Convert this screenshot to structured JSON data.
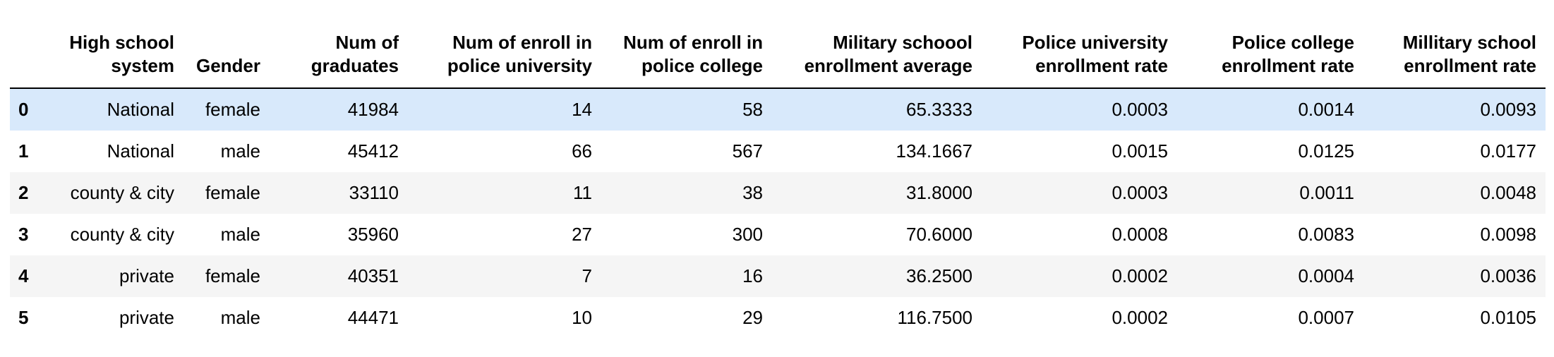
{
  "table": {
    "columns": [
      "",
      "High school system",
      "Gender",
      "Num of graduates",
      "Num of enroll in police university",
      "Num of enroll in police college",
      "Military schoool enrollment average",
      "Police university enrollment rate",
      "Police college enrollment rate",
      "Millitary school enrollment rate"
    ],
    "rows": [
      {
        "index": "0",
        "system": "National",
        "gender": "female",
        "graduates": "41984",
        "police_univ": "14",
        "police_college": "58",
        "military_avg": "65.3333",
        "police_univ_rate": "0.0003",
        "police_college_rate": "0.0014",
        "military_rate": "0.0093"
      },
      {
        "index": "1",
        "system": "National",
        "gender": "male",
        "graduates": "45412",
        "police_univ": "66",
        "police_college": "567",
        "military_avg": "134.1667",
        "police_univ_rate": "0.0015",
        "police_college_rate": "0.0125",
        "military_rate": "0.0177"
      },
      {
        "index": "2",
        "system": "county & city",
        "gender": "female",
        "graduates": "33110",
        "police_univ": "11",
        "police_college": "38",
        "military_avg": "31.8000",
        "police_univ_rate": "0.0003",
        "police_college_rate": "0.0011",
        "military_rate": "0.0048"
      },
      {
        "index": "3",
        "system": "county & city",
        "gender": "male",
        "graduates": "35960",
        "police_univ": "27",
        "police_college": "300",
        "military_avg": "70.6000",
        "police_univ_rate": "0.0008",
        "police_college_rate": "0.0083",
        "military_rate": "0.0098"
      },
      {
        "index": "4",
        "system": "private",
        "gender": "female",
        "graduates": "40351",
        "police_univ": "7",
        "police_college": "16",
        "military_avg": "36.2500",
        "police_univ_rate": "0.0002",
        "police_college_rate": "0.0004",
        "military_rate": "0.0036"
      },
      {
        "index": "5",
        "system": "private",
        "gender": "male",
        "graduates": "44471",
        "police_univ": "10",
        "police_college": "29",
        "military_avg": "116.7500",
        "police_univ_rate": "0.0002",
        "police_college_rate": "0.0007",
        "military_rate": "0.0105"
      }
    ],
    "highlighted_row": 0
  },
  "colors": {
    "header_border": "#000000",
    "stripe": "#f5f5f5",
    "hover_highlight": "#d8e9fb"
  }
}
